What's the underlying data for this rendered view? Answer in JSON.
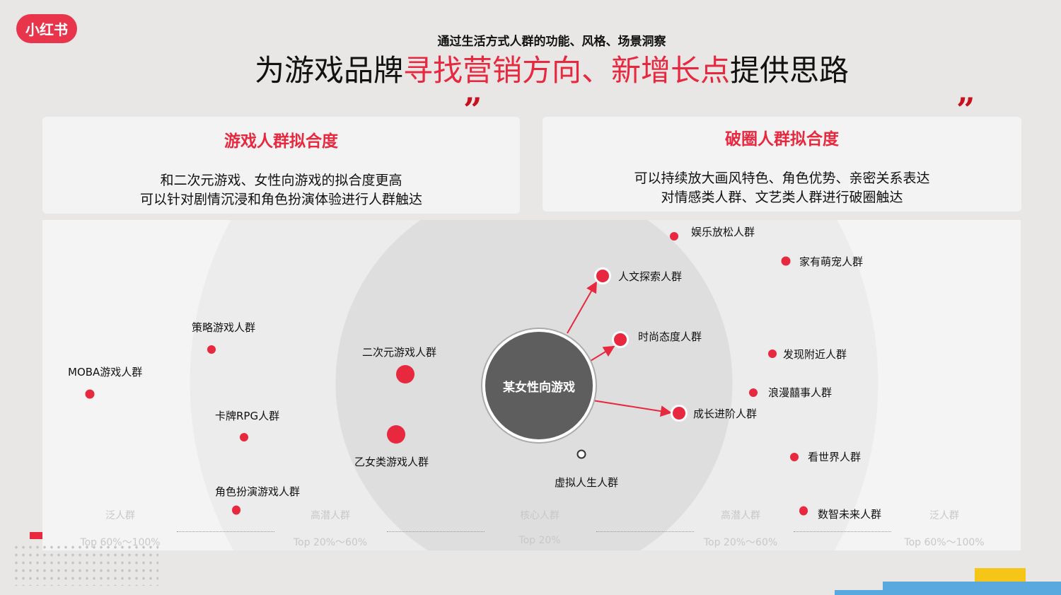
{
  "logo": "小红书",
  "header": {
    "subtitle": "通过生活方式人群的功能、风格、场景洞察",
    "title_a": "为游戏品牌",
    "title_b": "寻找营销方向、新增长点",
    "title_c": "提供思路"
  },
  "quote_mark": "”",
  "left_card": {
    "title": "游戏人群拟合度",
    "lines": [
      "和二次元游戏、女性向游戏的拟合度更高",
      "可以针对剧情沉浸和角色扮演体验进行人群触达"
    ]
  },
  "right_card": {
    "title": "破圈人群拟合度",
    "lines": [
      "可以持续放大画风特色、角色优势、亲密关系表达",
      "对情感类人群、文艺类人群进行破圈触达"
    ]
  },
  "center": "某女性向游戏",
  "nodes": [
    "娱乐放松人群",
    "家有萌宠人群",
    "人文探索人群",
    "策略游戏人群",
    "二次元游戏人群",
    "时尚态度人群",
    "发现附近人群",
    "MOBA游戏人群",
    "浪漫囍事人群",
    "卡牌RPG人群",
    "成长进阶人群",
    "乙女类游戏人群",
    "虚拟人生人群",
    "看世界人群",
    "角色扮演游戏人群",
    "数智未来人群"
  ],
  "tiers": [
    {
      "name": "泛人群",
      "range": "Top 60%～100%"
    },
    {
      "name": "高潜人群",
      "range": "Top 20%～60%"
    },
    {
      "name": "核心人群",
      "range": "Top 20%"
    },
    {
      "name": "高潜人群",
      "range": "Top 20%～60%"
    },
    {
      "name": "泛人群",
      "range": "Top 60%～100%"
    }
  ],
  "colors": {
    "accent": "#e8283f",
    "core": "#5e5e5e"
  }
}
